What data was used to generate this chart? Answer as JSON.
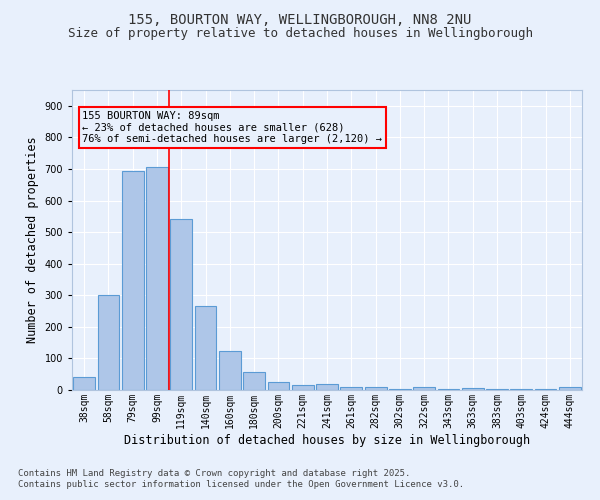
{
  "title1": "155, BOURTON WAY, WELLINGBOROUGH, NN8 2NU",
  "title2": "Size of property relative to detached houses in Wellingborough",
  "xlabel": "Distribution of detached houses by size in Wellingborough",
  "ylabel": "Number of detached properties",
  "categories": [
    "38sqm",
    "58sqm",
    "79sqm",
    "99sqm",
    "119sqm",
    "140sqm",
    "160sqm",
    "180sqm",
    "200sqm",
    "221sqm",
    "241sqm",
    "261sqm",
    "282sqm",
    "302sqm",
    "322sqm",
    "343sqm",
    "363sqm",
    "383sqm",
    "403sqm",
    "424sqm",
    "444sqm"
  ],
  "values": [
    42,
    300,
    695,
    705,
    540,
    265,
    122,
    58,
    25,
    15,
    18,
    8,
    10,
    2,
    10,
    2,
    5,
    2,
    2,
    2,
    8
  ],
  "bar_color": "#aec6e8",
  "bar_edge_color": "#5b9bd5",
  "background_color": "#e8f0fc",
  "grid_color": "#ffffff",
  "ylim": [
    0,
    950
  ],
  "yticks": [
    0,
    100,
    200,
    300,
    400,
    500,
    600,
    700,
    800,
    900
  ],
  "red_line_x": 3.5,
  "annotation_title": "155 BOURTON WAY: 89sqm",
  "annotation_line1": "← 23% of detached houses are smaller (628)",
  "annotation_line2": "76% of semi-detached houses are larger (2,120) →",
  "footer1": "Contains HM Land Registry data © Crown copyright and database right 2025.",
  "footer2": "Contains public sector information licensed under the Open Government Licence v3.0.",
  "title_fontsize": 10,
  "subtitle_fontsize": 9,
  "axis_label_fontsize": 8.5,
  "tick_fontsize": 7,
  "annotation_fontsize": 7.5,
  "footer_fontsize": 6.5
}
